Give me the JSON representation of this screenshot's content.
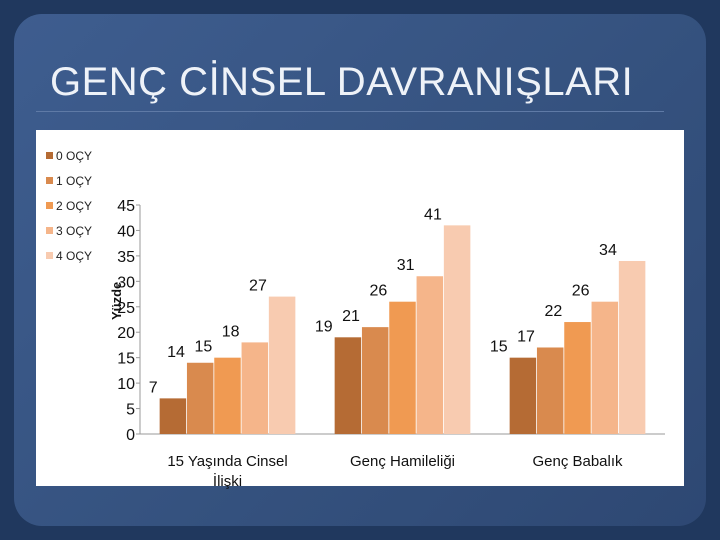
{
  "slide": {
    "title": "GENÇ CİNSEL DAVRANIŞLARI"
  },
  "colors": [
    "#b56b34",
    "#d98a4e",
    "#f09a52",
    "#f5b58a",
    "#f8cbb0"
  ],
  "chart_data": {
    "type": "bar",
    "ylabel": "Yüzde",
    "ylim": [
      0,
      45
    ],
    "yticks": [
      0,
      5,
      10,
      15,
      20,
      25,
      30,
      35,
      40,
      45
    ],
    "legend_position": "left",
    "categories": [
      "15 Yaşında Cinsel İlişki",
      "Genç Hamileliği",
      "Genç Babalık"
    ],
    "series": [
      {
        "name": "0 OÇY",
        "values": [
          7,
          19,
          15
        ]
      },
      {
        "name": "1 OÇY",
        "values": [
          14,
          21,
          17
        ]
      },
      {
        "name": "2 OÇY",
        "values": [
          15,
          26,
          22
        ]
      },
      {
        "name": "3  OÇY",
        "values": [
          18,
          31,
          26
        ]
      },
      {
        "name": "4 OÇY",
        "values": [
          27,
          41,
          34
        ]
      }
    ]
  }
}
